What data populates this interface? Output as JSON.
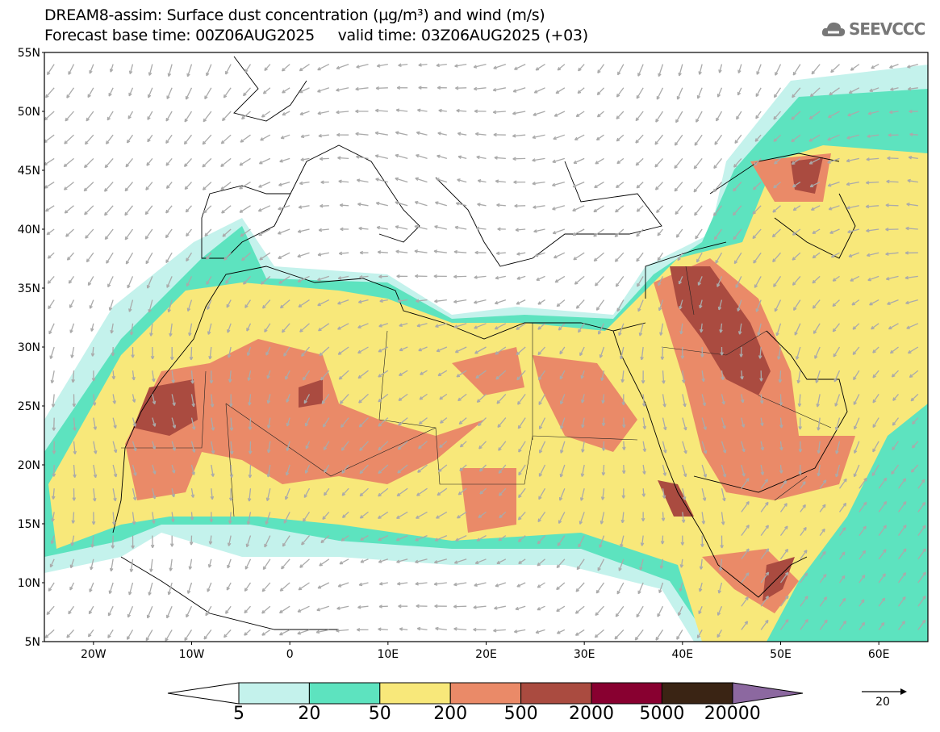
{
  "title": {
    "line1": "DREAM8-assim: Surface dust concentration (µg/m³) and wind (m/s)",
    "line2": "Forecast base time: 00Z06AUG2025     valid time: 03Z06AUG2025 (+03)"
  },
  "logo": {
    "text": "SEEVCCC",
    "icon": "cloud-icon"
  },
  "axes": {
    "lat_labels": [
      "55N",
      "50N",
      "45N",
      "40N",
      "35N",
      "30N",
      "25N",
      "20N",
      "15N",
      "10N",
      "5N"
    ],
    "lat_values": [
      55,
      50,
      45,
      40,
      35,
      30,
      25,
      20,
      15,
      10,
      5
    ],
    "lon_labels": [
      "20W",
      "10W",
      "0",
      "10E",
      "20E",
      "30E",
      "40E",
      "50E",
      "60E"
    ],
    "lon_values": [
      -20,
      -10,
      0,
      10,
      20,
      30,
      40,
      50,
      60
    ],
    "lon_range": [
      -25,
      65
    ],
    "lat_range": [
      5,
      55
    ]
  },
  "colorbar": {
    "labels": [
      "5",
      "20",
      "50",
      "200",
      "500",
      "2000",
      "5000",
      "20000"
    ],
    "colors": [
      "#c4f2ec",
      "#5de3bf",
      "#f8e87a",
      "#ea8a68",
      "#aa4b40",
      "#880030",
      "#3a2414"
    ],
    "under_color": "#ffffff",
    "over_color": "#8c68a0"
  },
  "wind_reference": {
    "label": "20"
  }
}
